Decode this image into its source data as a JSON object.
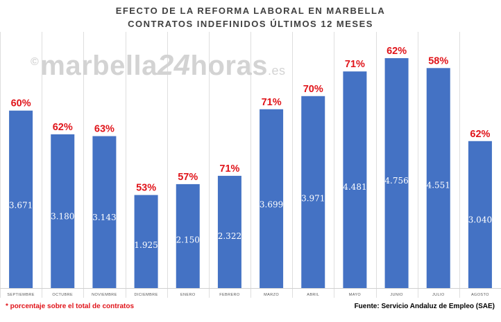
{
  "chart_data": {
    "type": "bar",
    "title_line1": "EFECTO DE LA REFORMA LABORAL EN MARBELLA",
    "title_line2": "CONTRATOS INDEFINIDOS ÚLTIMOS 12 MESES",
    "categories": [
      "SEPTIEMBRE",
      "OCTUBRE",
      "NOVIEMBRE",
      "DICIEMBRE",
      "ENERO",
      "FEBRERO",
      "MARZO",
      "ABRIL",
      "MAYO",
      "JUNIO",
      "JULIO",
      "AGOSTO"
    ],
    "series": [
      {
        "values": [
          3671,
          3180,
          3143,
          1925,
          2150,
          2322,
          3699,
          3971,
          4481,
          4756,
          4551,
          3040
        ],
        "value_labels": [
          "3.671",
          "3.180",
          "3.143",
          "1.925",
          "2.150",
          "2.322",
          "3.699",
          "3.971",
          "4.481",
          "4.756",
          "4.551",
          "3.040"
        ],
        "percent_labels": [
          "60%",
          "62%",
          "63%",
          "53%",
          "57%",
          "71%",
          "71%",
          "70%",
          "71%",
          "62%",
          "58%",
          "62%"
        ]
      }
    ],
    "ylim": [
      0,
      5300
    ],
    "grid": "vertical",
    "bar_color": "#4472c4",
    "percent_color": "#e0141a",
    "grid_color": "#dedede"
  },
  "watermark": {
    "copyright": "©",
    "part1": "marbella",
    "part2": "24",
    "part3": "horas",
    "part4": ".es"
  },
  "footnote": "* porcentaje sobre el total de contratos",
  "source": "Fuente: Servicio Andaluz de Empleo (SAE)"
}
